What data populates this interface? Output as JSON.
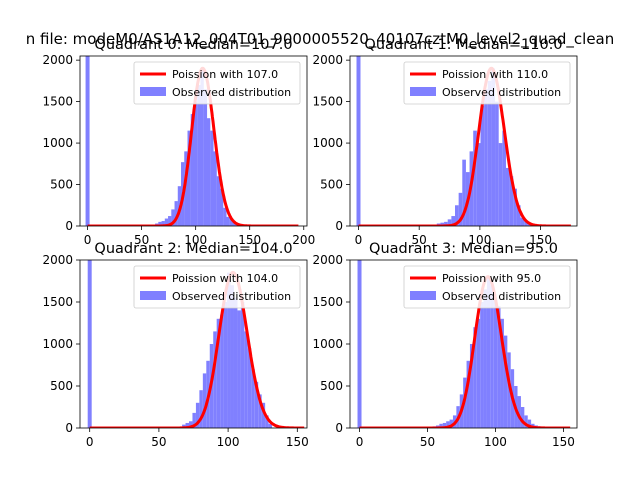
{
  "figure": {
    "title": "n file: modeM0/AS1A12_004T01_9000005520_40107cztM0_level2_quad_clean"
  },
  "colors": {
    "observed": "#8080ff",
    "poisson": "#ff0000"
  },
  "chart_data": [
    {
      "type": "bar",
      "title": "Quadrant 0: Median=107.0",
      "xlim": [
        -7,
        203
      ],
      "ylim": [
        0,
        2050
      ],
      "xticks": [
        0,
        50,
        100,
        150,
        200
      ],
      "yticks": [
        0,
        500,
        1000,
        1500,
        2000
      ],
      "median": 107,
      "poisson_mean": 107,
      "spike": {
        "x": 0,
        "value": 2050
      },
      "bin_width": 3.1,
      "hist_x": [
        64,
        67,
        70,
        73,
        76,
        79,
        82,
        85,
        88,
        91,
        94,
        97,
        100,
        103,
        106,
        109,
        112,
        115,
        118,
        121,
        124,
        127,
        130,
        133,
        136,
        139,
        142,
        145,
        148
      ],
      "hist_values": [
        30,
        50,
        60,
        90,
        120,
        200,
        300,
        480,
        770,
        900,
        1150,
        1350,
        1500,
        1700,
        1900,
        1650,
        1300,
        1150,
        900,
        600,
        450,
        220,
        110,
        80,
        50,
        35,
        25,
        15,
        10
      ],
      "curve_x": [
        0,
        195
      ],
      "legend": [
        "Poission with 107.0",
        "Observed distribution"
      ]
    },
    {
      "type": "bar",
      "title": "Quadrant 1: Median=110.0",
      "xlim": [
        -7,
        180
      ],
      "ylim": [
        0,
        2050
      ],
      "xticks": [
        0,
        50,
        100,
        150
      ],
      "yticks": [
        0,
        500,
        1000,
        1500,
        2000
      ],
      "median": 110,
      "poisson_mean": 110,
      "spike": {
        "x": 0,
        "value": 2050
      },
      "bin_width": 3.0,
      "hist_x": [
        66,
        69,
        72,
        75,
        78,
        81,
        84,
        87,
        90,
        93,
        96,
        99,
        102,
        105,
        108,
        111,
        114,
        117,
        120,
        123,
        126,
        129,
        132,
        135,
        138,
        141,
        144
      ],
      "hist_values": [
        30,
        40,
        50,
        80,
        120,
        250,
        400,
        800,
        650,
        900,
        1150,
        1000,
        1450,
        1650,
        1750,
        1900,
        1500,
        1000,
        1150,
        700,
        600,
        450,
        250,
        100,
        60,
        30,
        15
      ],
      "curve_x": [
        0,
        175
      ],
      "legend": [
        "Poission with 110.0",
        "Observed distribution"
      ]
    },
    {
      "type": "bar",
      "title": "Quadrant 2: Median=104.0",
      "xlim": [
        -7,
        157
      ],
      "ylim": [
        0,
        2000
      ],
      "xticks": [
        0,
        50,
        100,
        150
      ],
      "yticks": [
        0,
        500,
        1000,
        1500,
        2000
      ],
      "median": 104,
      "poisson_mean": 104,
      "spike": {
        "x": 0,
        "value": 2000
      },
      "bin_width": 2.5,
      "hist_x": [
        68,
        70.5,
        73,
        75.5,
        78,
        80.5,
        83,
        85.5,
        88,
        90.5,
        93,
        95.5,
        98,
        100.5,
        103,
        105.5,
        108,
        110.5,
        113,
        115.5,
        118,
        120.5,
        123,
        125.5,
        128,
        130.5
      ],
      "hist_values": [
        40,
        60,
        80,
        180,
        300,
        450,
        650,
        800,
        1000,
        1150,
        1300,
        1350,
        1500,
        1850,
        1700,
        1550,
        1400,
        1500,
        1150,
        950,
        700,
        550,
        400,
        300,
        150,
        50
      ],
      "curve_x": [
        0,
        155
      ],
      "legend": [
        "Poission with 104.0",
        "Observed distribution"
      ]
    },
    {
      "type": "bar",
      "title": "Quadrant 3: Median=95.0",
      "xlim": [
        -7,
        160
      ],
      "ylim": [
        0,
        2000
      ],
      "xticks": [
        0,
        50,
        100,
        150
      ],
      "yticks": [
        0,
        500,
        1000,
        1500,
        2000
      ],
      "median": 95,
      "poisson_mean": 95,
      "spike": {
        "x": 0,
        "value": 2000
      },
      "bin_width": 2.5,
      "hist_x": [
        55,
        57.5,
        60,
        62.5,
        65,
        67.5,
        70,
        72.5,
        75,
        77.5,
        80,
        82.5,
        85,
        87.5,
        90,
        92.5,
        95,
        97.5,
        100,
        102.5,
        105,
        107.5,
        110,
        112.5,
        115,
        117.5,
        120,
        122.5,
        125,
        127.5,
        130,
        132.5
      ],
      "hist_values": [
        20,
        30,
        50,
        60,
        80,
        100,
        150,
        260,
        400,
        600,
        800,
        1000,
        1200,
        1300,
        1500,
        1650,
        1800,
        1700,
        1550,
        1450,
        1300,
        1100,
        900,
        700,
        500,
        380,
        250,
        150,
        100,
        50,
        30,
        20
      ],
      "curve_x": [
        0,
        155
      ],
      "legend": [
        "Poission with 95.0",
        "Observed distribution"
      ]
    }
  ]
}
